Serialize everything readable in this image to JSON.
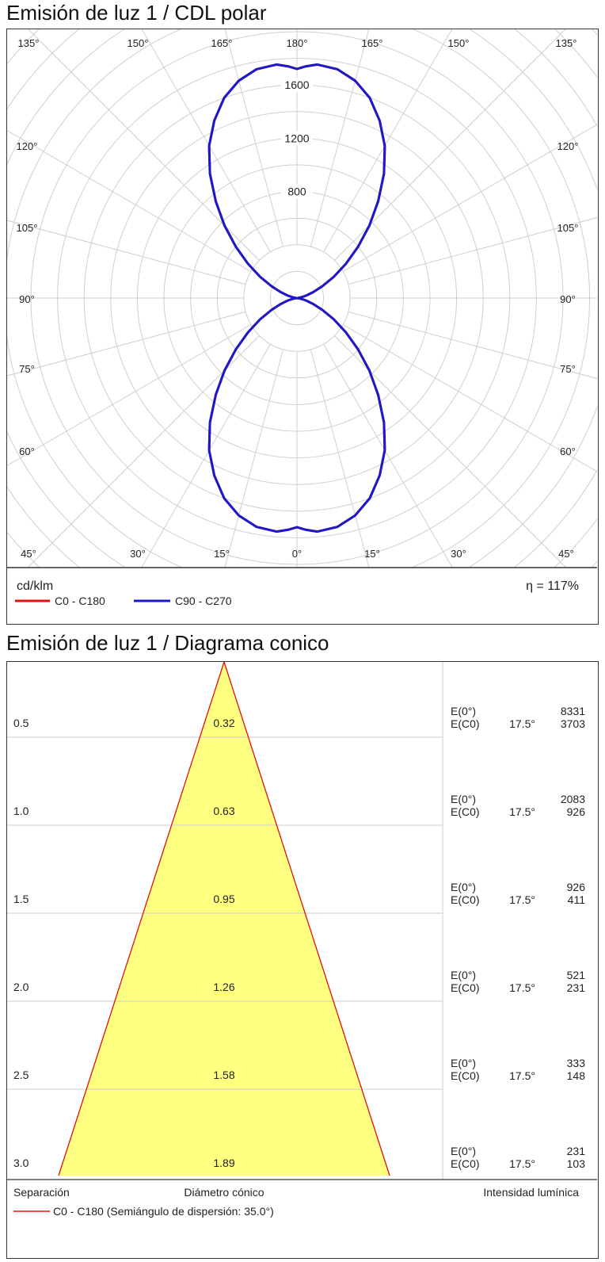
{
  "polar": {
    "title": "Emisión de luz 1 / CDL polar",
    "unit": "cd/klm",
    "efficiency": "η = 117%",
    "legend": [
      {
        "label": "C0 - C180",
        "color": "#e01010"
      },
      {
        "label": "C90 - C270",
        "color": "#1a1acc"
      }
    ]
  },
  "cone": {
    "title": "Emisión de luz 1 / Diagrama conico",
    "footer": {
      "separation": "Separación",
      "cone_diameter": "Diámetro cónico",
      "intensity": "Intensidad lumínica",
      "legend": "C0 - C180 (Semiángulo de dispersión: 35.0°)"
    }
  },
  "chart_data": [
    {
      "type": "polar",
      "title": "Emisión de luz 1 / CDL polar",
      "unit": "cd/klm",
      "rlim": [
        0,
        2000
      ],
      "ring_step": 200,
      "ring_labels": [
        "800",
        "1200",
        "1600"
      ],
      "angle_labels_top": [
        "135°",
        "150°",
        "165°",
        "180°",
        "165°",
        "150°",
        "135°"
      ],
      "angle_labels_bottom": [
        "45°",
        "30°",
        "15°",
        "0°",
        "15°",
        "30°",
        "45°"
      ],
      "angle_labels_side": [
        "120°",
        "105°",
        "90°",
        "75°",
        "60°"
      ],
      "series": [
        {
          "name": "C90 - C270",
          "color": "#1a1acc",
          "angles_deg": [
            0,
            2,
            5,
            10,
            15,
            20,
            25,
            30,
            35,
            40,
            45,
            50,
            55,
            60,
            65,
            70,
            75,
            80,
            85,
            90
          ],
          "intensity": [
            1720,
            1740,
            1760,
            1745,
            1690,
            1600,
            1470,
            1320,
            1140,
            950,
            770,
            600,
            450,
            320,
            210,
            130,
            70,
            30,
            8,
            0
          ]
        },
        {
          "name": "C0 - C180",
          "color": "#e01010",
          "angles_deg": [
            0,
            2,
            5,
            10,
            15,
            20,
            25,
            30,
            35,
            40,
            45,
            50,
            55,
            60,
            65,
            70,
            75,
            80,
            85,
            90
          ],
          "intensity": [
            1720,
            1740,
            1760,
            1745,
            1690,
            1600,
            1470,
            1320,
            1140,
            950,
            770,
            600,
            450,
            320,
            210,
            130,
            70,
            30,
            8,
            0
          ]
        }
      ],
      "efficiency": "η = 117%"
    },
    {
      "type": "cone",
      "title": "Emisión de luz 1 / Diagrama conico",
      "half_angle_deg": 35.0,
      "rows": [
        {
          "distance": "0.5",
          "diameter": "0.32",
          "e0_label": "E(0°)",
          "e0": "8331",
          "ec0_label": "E(C0)",
          "angle": "17.5°",
          "ec0": "3703"
        },
        {
          "distance": "1.0",
          "diameter": "0.63",
          "e0_label": "E(0°)",
          "e0": "2083",
          "ec0_label": "E(C0)",
          "angle": "17.5°",
          "ec0": "926"
        },
        {
          "distance": "1.5",
          "diameter": "0.95",
          "e0_label": "E(0°)",
          "e0": "926",
          "ec0_label": "E(C0)",
          "angle": "17.5°",
          "ec0": "411"
        },
        {
          "distance": "2.0",
          "diameter": "1.26",
          "e0_label": "E(0°)",
          "e0": "521",
          "ec0_label": "E(C0)",
          "angle": "17.5°",
          "ec0": "231"
        },
        {
          "distance": "2.5",
          "diameter": "1.58",
          "e0_label": "E(0°)",
          "e0": "333",
          "ec0_label": "E(C0)",
          "angle": "17.5°",
          "ec0": "148"
        },
        {
          "distance": "3.0",
          "diameter": "1.89",
          "e0_label": "E(0°)",
          "e0": "231",
          "ec0_label": "E(C0)",
          "angle": "17.5°",
          "ec0": "103"
        }
      ],
      "fill_color": "#ffff80",
      "edge_color": "#e01010"
    }
  ]
}
